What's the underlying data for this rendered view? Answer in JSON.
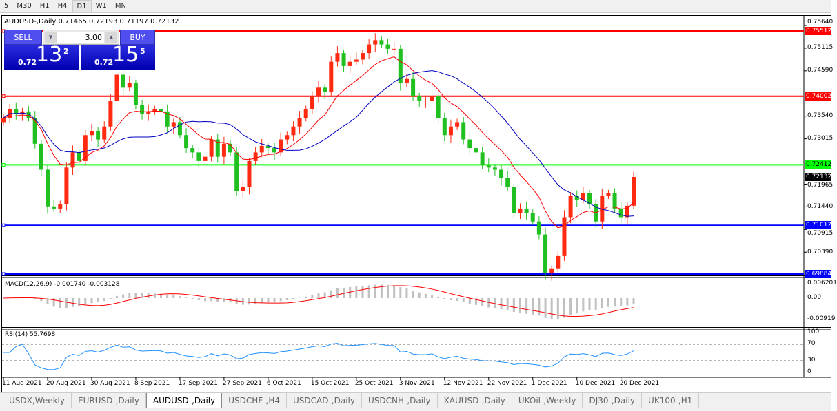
{
  "toolbar": {
    "timeframes": [
      "5",
      "M30",
      "H1",
      "H4",
      "D1",
      "W1",
      "MN"
    ],
    "active": "D1"
  },
  "chart": {
    "title": "AUDUSD-,Daily  0.71465 0.72193 0.71197 0.72132",
    "bid": "0.72132"
  },
  "trade_panel": {
    "sell_label": "SELL",
    "buy_label": "BUY",
    "lot": "3.00",
    "sell_prefix": "0.72",
    "sell_big": "13",
    "sell_pip": "2",
    "buy_prefix": "0.72",
    "buy_big": "15",
    "buy_pip": "5"
  },
  "price_axis": [
    "0.75640",
    "0.75115",
    "0.74590",
    "0.73540",
    "0.73015",
    "0.71965",
    "0.71440",
    "0.70915",
    "0.70390"
  ],
  "hlines": [
    {
      "price": "0.75512",
      "color": "#ff0000"
    },
    {
      "price": "0.74002",
      "color": "#ff0000"
    },
    {
      "price": "0.72412",
      "color": "#00ff00"
    },
    {
      "price": "0.71012",
      "color": "#0000ff"
    },
    {
      "price": "0.69884",
      "color": "#0000ff"
    }
  ],
  "macd": {
    "label": "MACD(12,26,9) -0.001740 -0.003128",
    "axis": [
      "0.006201",
      "0.00",
      "-0.00919"
    ]
  },
  "rsi": {
    "label": "RSI(14) 55.7698",
    "axis": [
      "100",
      "70",
      "30",
      "0"
    ]
  },
  "dates": [
    "11 Aug 2021",
    "20 Aug 2021",
    "30 Aug 2021",
    "8 Sep 2021",
    "17 Sep 2021",
    "27 Sep 2021",
    "6 Oct 2021",
    "15 Oct 2021",
    "25 Oct 2021",
    "3 Nov 2021",
    "12 Nov 2021",
    "22 Nov 2021",
    "1 Dec 2021",
    "10 Dec 2021",
    "20 Dec 2021"
  ],
  "tabs": [
    "USDX,Weekly",
    "EURUSD-,Daily",
    "AUDUSD-,Daily",
    "USDCHF-,H4",
    "USDCAD-,Daily",
    "USDCNH-,Daily",
    "XAUUSD-,Daily",
    "UKOil-,Weekly",
    "DJ30-,Daily",
    "UK100-,H1"
  ],
  "active_tab": "AUDUSD-,Daily",
  "colors": {
    "up_candle": "#ff2a10",
    "down_candle": "#20c020",
    "ma_fast": "#ff0000",
    "ma_slow": "#0000c0",
    "macd_hist": "#c0c0c0",
    "rsi": "#1e90ff"
  },
  "chart_data": {
    "type": "candlestick",
    "first_open": 0.734,
    "closes": [
      0.735,
      0.737,
      0.736,
      0.7365,
      0.735,
      0.729,
      0.723,
      0.7145,
      0.714,
      0.715,
      0.7235,
      0.727,
      0.725,
      0.731,
      0.732,
      0.73,
      0.733,
      0.739,
      0.745,
      0.742,
      0.743,
      0.738,
      0.736,
      0.7365,
      0.737,
      0.7365,
      0.733,
      0.734,
      0.731,
      0.728,
      0.727,
      0.725,
      0.726,
      0.73,
      0.726,
      0.729,
      0.727,
      0.718,
      0.719,
      0.725,
      0.727,
      0.7285,
      0.728,
      0.727,
      0.73,
      0.731,
      0.733,
      0.735,
      0.737,
      0.74,
      0.742,
      0.741,
      0.748,
      0.75,
      0.747,
      0.748,
      0.7485,
      0.75,
      0.752,
      0.753,
      0.752,
      0.751,
      0.751,
      0.743,
      0.744,
      0.74,
      0.739,
      0.739,
      0.74,
      0.735,
      0.731,
      0.733,
      0.734,
      0.73,
      0.728,
      0.727,
      0.724,
      0.7235,
      0.723,
      0.721,
      0.719,
      0.713,
      0.714,
      0.713,
      0.711,
      0.708,
      0.699,
      0.7,
      0.703,
      0.712,
      0.717,
      0.716,
      0.7175,
      0.715,
      0.711,
      0.717,
      0.7175,
      0.714,
      0.712,
      0.71465,
      0.72132
    ]
  }
}
